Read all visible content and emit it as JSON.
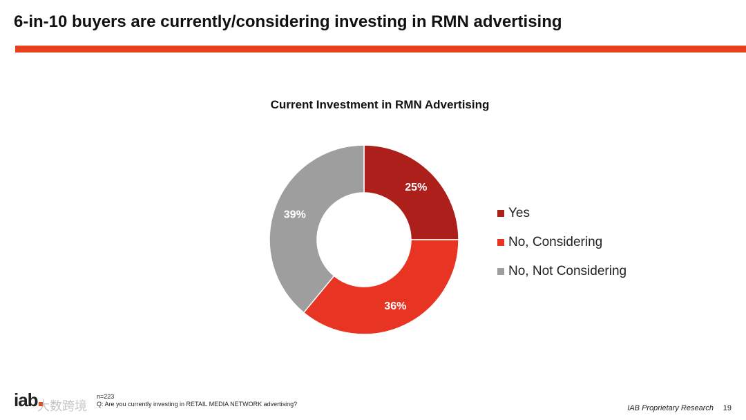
{
  "slide": {
    "title": "6-in-10 buyers are currently/considering investing in RMN advertising",
    "accent_color": "#e8401c"
  },
  "chart_data": {
    "type": "pie",
    "variant": "donut",
    "title": "Current Investment in RMN Advertising",
    "legend_position": "right",
    "slices": [
      {
        "name": "Yes",
        "value": 25,
        "label": "25%",
        "color": "#ac1f1b"
      },
      {
        "name": "No, Considering",
        "value": 36,
        "label": "36%",
        "color": "#e73423"
      },
      {
        "name": "No, Not Considering",
        "value": 39,
        "label": "39%",
        "color": "#9e9e9e"
      }
    ]
  },
  "footer": {
    "logo_text": "iab",
    "watermark": "大数跨境",
    "sample_size": "n=223",
    "question": "Q: Are you currently investing in RETAIL MEDIA NETWORK advertising?",
    "source": "IAB Proprietary Research",
    "page_number": "19"
  }
}
